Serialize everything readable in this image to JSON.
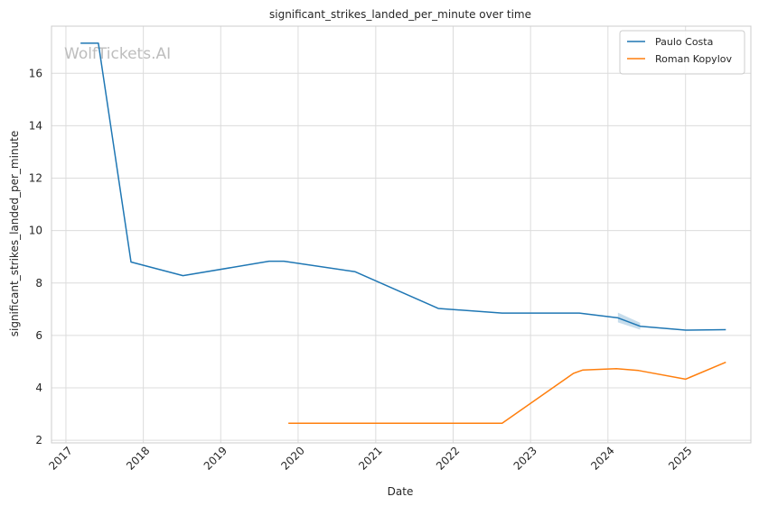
{
  "watermark": "WolfTickets.AI",
  "chart_data": {
    "type": "line",
    "title": "significant_strikes_landed_per_minute over time",
    "xlabel": "Date",
    "ylabel": "significant_strikes_landed_per_minute",
    "xlim": [
      "2016-10-25",
      "2025-11-05"
    ],
    "ylim": [
      1.9,
      17.8
    ],
    "x_ticks": [
      "2017",
      "2018",
      "2019",
      "2020",
      "2021",
      "2022",
      "2023",
      "2024",
      "2025"
    ],
    "y_ticks": [
      2,
      4,
      6,
      8,
      10,
      12,
      14,
      16
    ],
    "grid": true,
    "legend_position": "top-right",
    "series": [
      {
        "name": "Paulo Costa",
        "color": "#1f77b4",
        "points": [
          [
            "2017-03-11",
            17.15
          ],
          [
            "2017-06-03",
            17.15
          ],
          [
            "2017-11-04",
            8.8
          ],
          [
            "2018-07-07",
            8.28
          ],
          [
            "2019-08-17",
            8.83
          ],
          [
            "2019-10-26",
            8.83
          ],
          [
            "2020-09-26",
            8.43
          ],
          [
            "2021-10-23",
            7.03
          ],
          [
            "2022-08-20",
            6.85
          ],
          [
            "2023-08-19",
            6.85
          ],
          [
            "2024-02-17",
            6.67
          ],
          [
            "2024-06-01",
            6.35
          ],
          [
            "2025-01-01",
            6.2
          ],
          [
            "2025-07-10",
            6.22
          ]
        ],
        "band": [
          [
            "2024-02-17",
            6.5,
            6.87
          ],
          [
            "2024-06-01",
            6.22,
            6.48
          ]
        ]
      },
      {
        "name": "Roman Kopylov",
        "color": "#ff7f0e",
        "points": [
          [
            "2019-11-16",
            2.65
          ],
          [
            "2022-08-20",
            2.65
          ],
          [
            "2023-07-22",
            4.55
          ],
          [
            "2023-09-05",
            4.68
          ],
          [
            "2024-02-10",
            4.73
          ],
          [
            "2024-05-25",
            4.66
          ],
          [
            "2025-01-01",
            4.33
          ],
          [
            "2025-07-10",
            4.98
          ]
        ]
      }
    ]
  }
}
